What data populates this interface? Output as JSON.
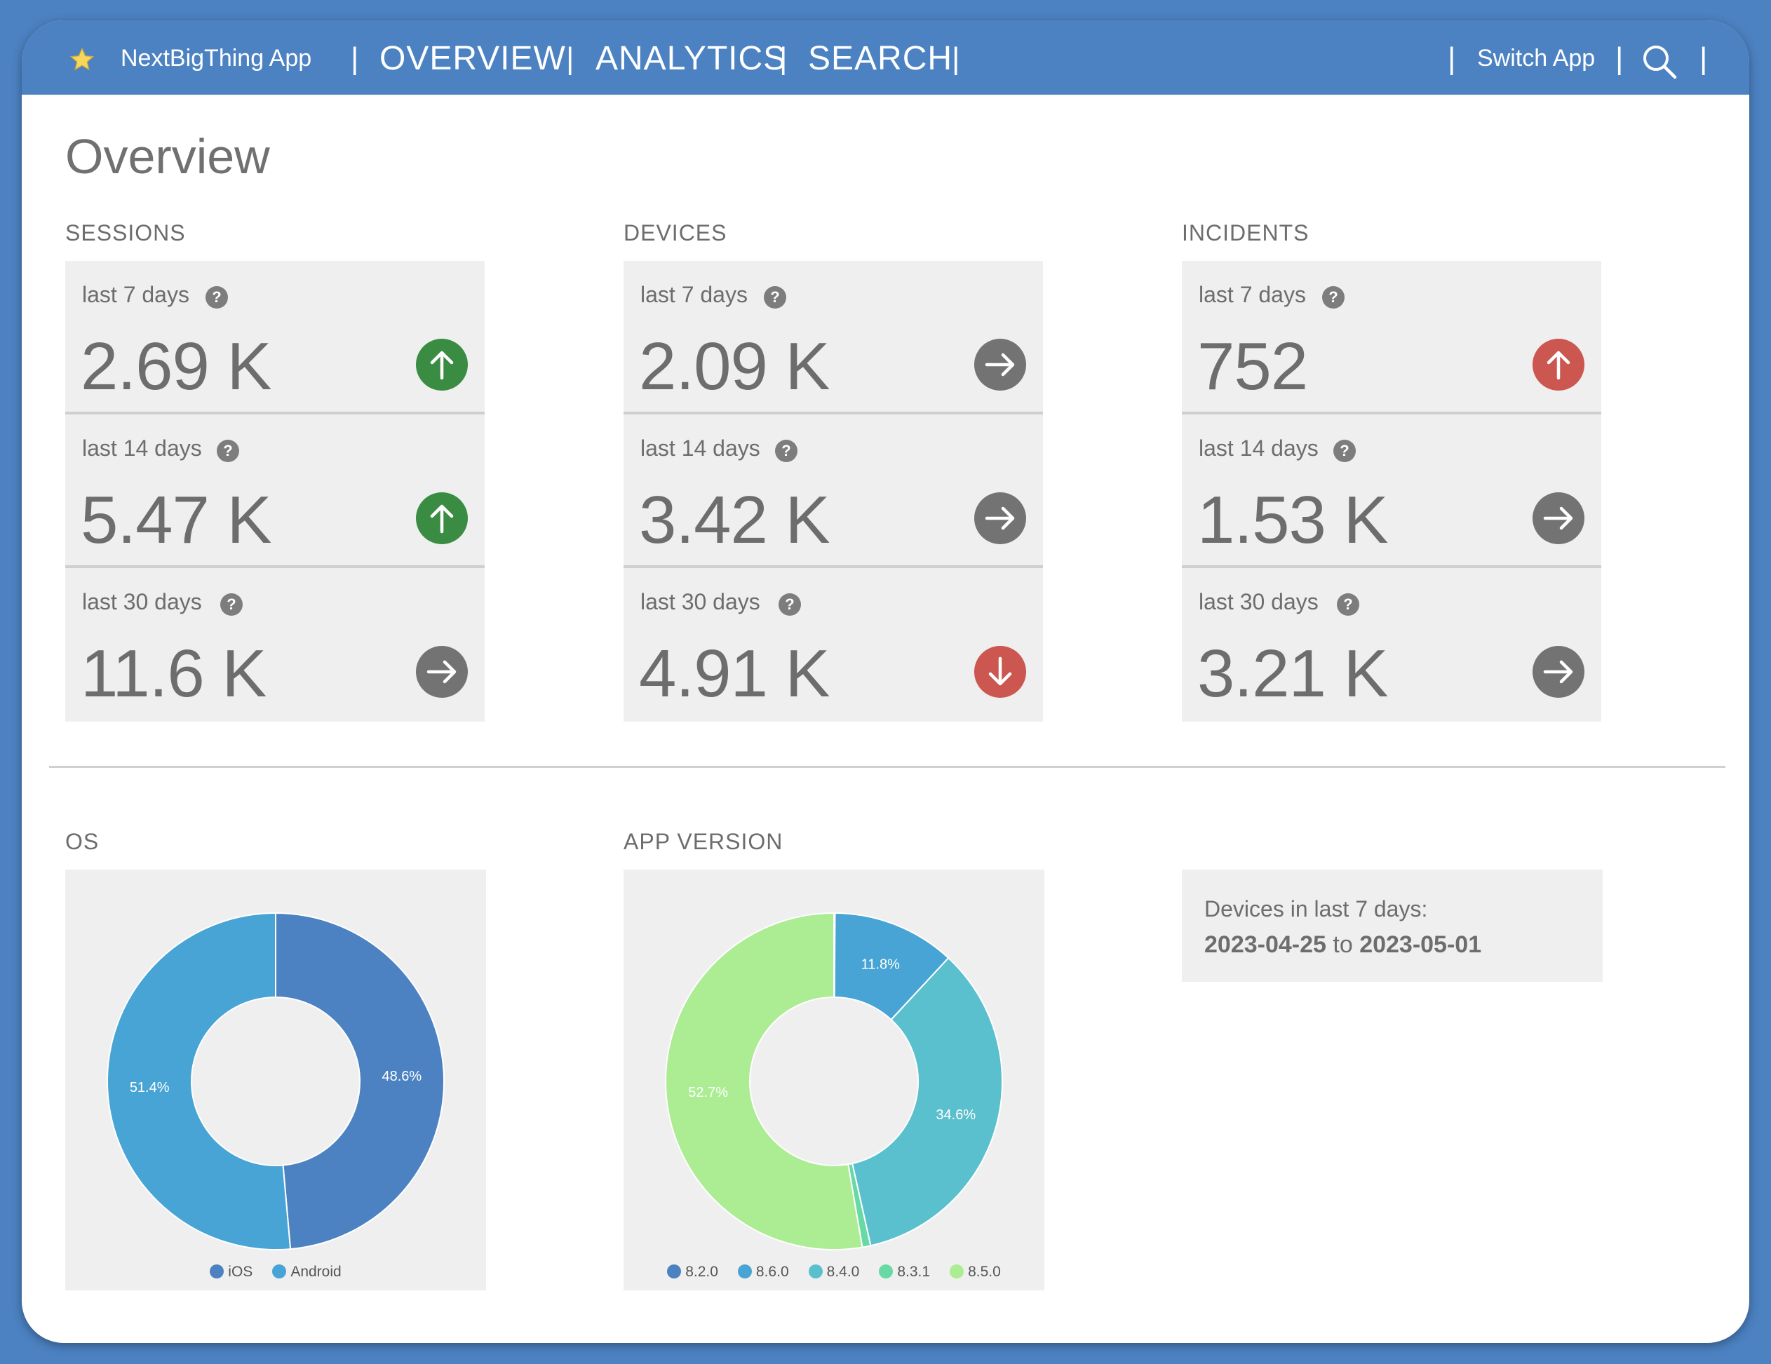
{
  "header": {
    "app_name": "NextBigThing App",
    "nav": [
      {
        "label": "OVERVIEW",
        "active": true
      },
      {
        "label": "ANALYTICS",
        "active": false
      },
      {
        "label": "SEARCH",
        "active": false
      }
    ],
    "switch_app": "Switch App",
    "icons": {
      "app": "star-icon",
      "search": "search-icon"
    }
  },
  "page_title": "Overview",
  "metrics": [
    {
      "label": "SESSIONS",
      "cards": [
        {
          "period": "last 7 days",
          "value": "2.69 K",
          "trend": "up",
          "trend_color": "#3a8c43"
        },
        {
          "period": "last 14 days",
          "value": "5.47 K",
          "trend": "up",
          "trend_color": "#3a8c43"
        },
        {
          "period": "last 30 days",
          "value": "11.6 K",
          "trend": "flat",
          "trend_color": "#737373"
        }
      ]
    },
    {
      "label": "DEVICES",
      "cards": [
        {
          "period": "last 7 days",
          "value": "2.09 K",
          "trend": "flat",
          "trend_color": "#737373"
        },
        {
          "period": "last 14 days",
          "value": "3.42 K",
          "trend": "flat",
          "trend_color": "#737373"
        },
        {
          "period": "last 30 days",
          "value": "4.91 K",
          "trend": "down",
          "trend_color": "#cc5650"
        }
      ]
    },
    {
      "label": "INCIDENTS",
      "cards": [
        {
          "period": "last 7 days",
          "value": "752",
          "trend": "up",
          "trend_color": "#cc5650"
        },
        {
          "period": "last 14 days",
          "value": "1.53 K",
          "trend": "flat",
          "trend_color": "#737373"
        },
        {
          "period": "last 30 days",
          "value": "3.21 K",
          "trend": "flat",
          "trend_color": "#737373"
        }
      ]
    }
  ],
  "charts": {
    "os": {
      "label": "OS"
    },
    "app_version": {
      "label": "APP VERSION"
    }
  },
  "info": {
    "line1": "Devices in last 7 days:",
    "from": "2023-04-25",
    "to_word": "to",
    "to": "2023-05-01"
  },
  "chart_data": [
    {
      "type": "pie",
      "title": "OS",
      "categories": [
        "iOS",
        "Android"
      ],
      "values": [
        48.6,
        51.4
      ],
      "labels": [
        "48.6%",
        "51.4%"
      ],
      "colors": [
        "#4c82c2",
        "#47a4d4"
      ],
      "donut": true
    },
    {
      "type": "pie",
      "title": "APP VERSION",
      "categories": [
        "8.2.0",
        "8.6.0",
        "8.4.0",
        "8.3.1",
        "8.5.0"
      ],
      "values": [
        0.1,
        11.8,
        34.6,
        0.8,
        52.7
      ],
      "labels": [
        "",
        "11.8%",
        "34.6%",
        "",
        "52.7%"
      ],
      "colors": [
        "#4c82c2",
        "#47a4d4",
        "#5bc0cd",
        "#66d9a4",
        "#acec93"
      ],
      "donut": true
    }
  ]
}
